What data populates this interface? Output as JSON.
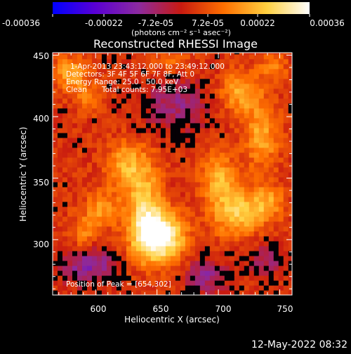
{
  "colorbar": {
    "tick_labels": [
      "-0.00036",
      "-0.00022",
      "-7.2e-05",
      "7.2e-05",
      "0.00022",
      "0.00036"
    ],
    "unit_label": "(photons cm⁻² s⁻¹ asec⁻²)",
    "range": [
      -0.00036,
      0.00036
    ],
    "colors": [
      "#0000ff",
      "#5a00d4",
      "#8c2aa0",
      "#c81a10",
      "#ff7000",
      "#ffd040",
      "#ffffff"
    ]
  },
  "chart_data": {
    "type": "heatmap",
    "title": "Reconstructed RHESSI Image",
    "xlabel": "Heliocentric X (arcsec)",
    "ylabel": "Heliocentric Y (arcsec)",
    "xlim": [
      565,
      760
    ],
    "ylim": [
      255,
      452
    ],
    "xticks": [
      600,
      650,
      700,
      750
    ],
    "yticks": [
      300,
      350,
      400,
      450
    ],
    "xtick_labels": [
      "600",
      "650",
      "700",
      "750"
    ],
    "ytick_labels": [
      "300",
      "350",
      "400",
      "450"
    ],
    "peak": [
      654,
      302
    ],
    "annotations": {
      "time": "1-Apr-2013 23:43:12.000 to 23:49:12.000",
      "detectors": "Detectors: 3F 4F 5F 6F 7F 8F, Att 0",
      "energy": "Energy Range: 25.0 - 50.0 keV",
      "method": "Clean",
      "counts": "Total counts: 7.95E+03",
      "peak_label": "Position of Peak = [654,302]"
    },
    "sources": [
      {
        "x": 652,
        "y": 303,
        "sx": 14,
        "sy": 14,
        "amp": 1.0
      },
      {
        "x": 640,
        "y": 325,
        "sx": 10,
        "sy": 25,
        "amp": 0.55
      },
      {
        "x": 625,
        "y": 360,
        "sx": 12,
        "sy": 14,
        "amp": 0.45
      },
      {
        "x": 605,
        "y": 325,
        "sx": 10,
        "sy": 10,
        "amp": 0.4
      },
      {
        "x": 590,
        "y": 305,
        "sx": 8,
        "sy": 10,
        "amp": 0.3
      },
      {
        "x": 715,
        "y": 322,
        "sx": 14,
        "sy": 14,
        "amp": 0.55
      },
      {
        "x": 700,
        "y": 350,
        "sx": 10,
        "sy": 15,
        "amp": 0.45
      },
      {
        "x": 740,
        "y": 330,
        "sx": 10,
        "sy": 10,
        "amp": 0.4
      },
      {
        "x": 735,
        "y": 385,
        "sx": 10,
        "sy": 18,
        "amp": 0.45
      },
      {
        "x": 718,
        "y": 420,
        "sx": 12,
        "sy": 12,
        "amp": 0.45
      },
      {
        "x": 745,
        "y": 440,
        "sx": 8,
        "sy": 8,
        "amp": 0.3
      },
      {
        "x": 580,
        "y": 435,
        "sx": 10,
        "sy": 10,
        "amp": 0.45
      },
      {
        "x": 595,
        "y": 415,
        "sx": 8,
        "sy": 8,
        "amp": 0.3
      },
      {
        "x": 660,
        "y": 445,
        "sx": 12,
        "sy": 6,
        "amp": 0.25
      }
    ],
    "negative_sources": [
      {
        "x": 595,
        "y": 280,
        "sx": 15,
        "sy": 10,
        "amp": 0.45
      },
      {
        "x": 665,
        "y": 410,
        "sx": 20,
        "sy": 15,
        "amp": 0.3
      },
      {
        "x": 690,
        "y": 270,
        "sx": 12,
        "sy": 10,
        "amp": 0.35
      },
      {
        "x": 740,
        "y": 285,
        "sx": 12,
        "sy": 10,
        "amp": 0.25
      }
    ]
  },
  "footer": {
    "date": "12-May-2022 08:32"
  }
}
